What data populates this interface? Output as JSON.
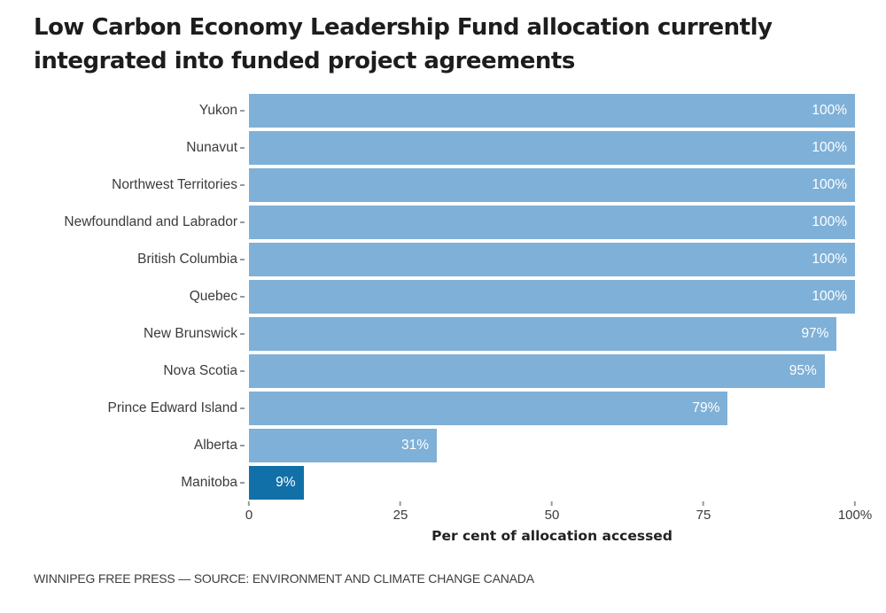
{
  "title": {
    "line1": "Low Carbon Economy Leadership Fund allocation currently",
    "line2": "integrated into funded project agreements"
  },
  "chart_data": {
    "type": "bar",
    "orientation": "horizontal",
    "title": "Low Carbon Economy Leadership Fund allocation currently integrated into funded project agreements",
    "categories": [
      "Yukon",
      "Nunavut",
      "Northwest Territories",
      "Newfoundland and Labrador",
      "British Columbia",
      "Quebec",
      "New Brunswick",
      "Nova Scotia",
      "Prince Edward Island",
      "Alberta",
      "Manitoba"
    ],
    "values": [
      100,
      100,
      100,
      100,
      100,
      100,
      97,
      95,
      79,
      31,
      9
    ],
    "value_labels": [
      "100%",
      "100%",
      "100%",
      "100%",
      "100%",
      "100%",
      "97%",
      "95%",
      "79%",
      "31%",
      "9%"
    ],
    "highlight_category": "Manitoba",
    "xlabel": "Per cent of allocation accessed",
    "ylabel": "",
    "xlim": [
      0,
      100
    ],
    "x_ticks": [
      {
        "value": 0,
        "label": "0"
      },
      {
        "value": 25,
        "label": "25"
      },
      {
        "value": 50,
        "label": "50"
      },
      {
        "value": 75,
        "label": "75"
      },
      {
        "value": 100,
        "label": "100%"
      }
    ],
    "grid": false,
    "legend": false,
    "colors": {
      "bar": "#7fb0d7",
      "highlight_bar": "#1270a8",
      "value_text": "#ffffff",
      "axis_text": "#3b3b3b",
      "tick_mark": "#9a9a9a"
    }
  },
  "footer": {
    "source_line": "WINNIPEG FREE PRESS — SOURCE: ENVIRONMENT AND CLIMATE CHANGE CANADA"
  }
}
